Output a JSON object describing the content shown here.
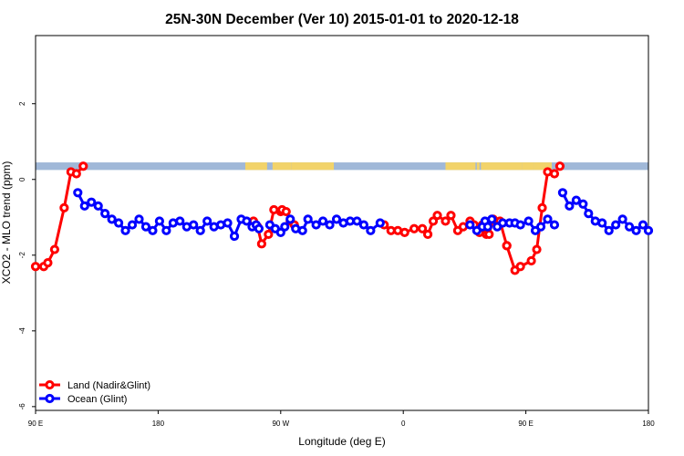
{
  "chart_data": {
    "type": "line",
    "title": "25N-30N December (Ver 10)   2015-01-01 to 2020-12-18",
    "xlabel": "Longitude (deg E)",
    "ylabel": "XCO2 - MLO trend (ppm)",
    "x_ticks": [
      {
        "value": 90,
        "label": "90 E"
      },
      {
        "value": 180,
        "label": "180"
      },
      {
        "value": 270,
        "label": "90 W"
      },
      {
        "value": 360,
        "label": "0"
      },
      {
        "value": 450,
        "label": "90 E"
      },
      {
        "value": 540,
        "label": "180"
      }
    ],
    "y_ticks": [
      {
        "value": -6,
        "label": "-6"
      },
      {
        "value": -4,
        "label": "-4"
      },
      {
        "value": -2,
        "label": "-2"
      },
      {
        "value": 0,
        "label": "0"
      },
      {
        "value": 2,
        "label": "2"
      }
    ],
    "xlim": [
      90,
      540
    ],
    "ylim": [
      -6.1,
      3.8
    ],
    "grid": false,
    "legend_position": "bottom-left",
    "land_ocean_strip": {
      "y_range": [
        0.25,
        0.45
      ],
      "ocean_color": "#a0b8d8",
      "land_color": "#f2d36a",
      "land_segments": [
        [
          244,
          260
        ],
        [
          264,
          278
        ],
        [
          279,
          281
        ],
        [
          278,
          309
        ],
        [
          391,
          413
        ],
        [
          414,
          416
        ],
        [
          417,
          423
        ],
        [
          422,
          447
        ],
        [
          447,
          456
        ],
        [
          456,
          469
        ]
      ]
    },
    "series": [
      {
        "name": "Land (Nadir&Glint)",
        "color": "#ff0000",
        "segments": [
          {
            "x": [
              90,
              96,
              99,
              104,
              111,
              116,
              120,
              125
            ],
            "y": [
              -2.3,
              -2.3,
              -2.2,
              -1.85,
              -0.75,
              0.2,
              0.15,
              0.35
            ]
          },
          {
            "x": [
              250,
              253,
              256,
              261,
              265
            ],
            "y": [
              -1.1,
              -1.25,
              -1.7,
              -1.45,
              -0.8
            ]
          },
          {
            "x": [
              270,
              271
            ],
            "y": [
              -0.85,
              -0.8
            ]
          },
          {
            "x": [
              274,
              277,
              280
            ],
            "y": [
              -0.85,
              -1.1,
              -1.2
            ]
          },
          {
            "x": [
              346,
              351,
              356,
              361,
              368,
              374,
              378,
              382,
              385,
              391,
              395,
              400,
              404,
              409
            ],
            "y": [
              -1.2,
              -1.35,
              -1.35,
              -1.4,
              -1.3,
              -1.3,
              -1.45,
              -1.1,
              -0.95,
              -1.1,
              -0.95,
              -1.35,
              -1.25,
              -1.1
            ]
          },
          {
            "x": [
              412,
              416,
              418,
              421,
              423,
              426,
              431,
              436
            ],
            "y": [
              -1.2,
              -1.4,
              -1.2,
              -1.45,
              -1.45,
              -1.05,
              -1.1,
              -1.75
            ]
          },
          {
            "x": [
              436,
              442,
              446,
              454,
              458,
              462,
              466,
              471
            ],
            "y": [
              -1.75,
              -2.4,
              -2.3,
              -2.15,
              -1.85,
              -0.75,
              0.2,
              0.15
            ]
          },
          {
            "x": [
              475
            ],
            "y": [
              0.35
            ]
          }
        ]
      },
      {
        "name": "Ocean (Glint)",
        "color": "#0000ff",
        "segments": [
          {
            "x": [
              121,
              126,
              131,
              136,
              141,
              146,
              151,
              156,
              161,
              166,
              171,
              176,
              181,
              186,
              191,
              196,
              201,
              206,
              211,
              216,
              221,
              226,
              231,
              236,
              241,
              245,
              249,
              252,
              254
            ],
            "y": [
              -0.35,
              -0.7,
              -0.6,
              -0.7,
              -0.9,
              -1.05,
              -1.15,
              -1.35,
              -1.2,
              -1.05,
              -1.25,
              -1.35,
              -1.1,
              -1.35,
              -1.15,
              -1.1,
              -1.25,
              -1.2,
              -1.35,
              -1.1,
              -1.25,
              -1.2,
              -1.15,
              -1.5,
              -1.05,
              -1.1,
              -1.25,
              -1.2,
              -1.3
            ]
          },
          {
            "x": [
              262,
              266,
              270
            ],
            "y": [
              -1.2,
              -1.3,
              -1.4
            ]
          },
          {
            "x": [
              273,
              277
            ],
            "y": [
              -1.25,
              -1.05
            ]
          },
          {
            "x": [
              281,
              286,
              290,
              296,
              301,
              306,
              311,
              316,
              321,
              326,
              331,
              336,
              343
            ],
            "y": [
              -1.3,
              -1.35,
              -1.05,
              -1.2,
              -1.1,
              -1.2,
              -1.05,
              -1.15,
              -1.1,
              -1.1,
              -1.2,
              -1.35,
              -1.15
            ]
          },
          {
            "x": [
              409,
              414
            ],
            "y": [
              -1.2,
              -1.35
            ]
          },
          {
            "x": [
              418,
              420,
              422,
              425,
              429,
              433,
              438,
              442,
              446,
              452,
              457,
              461,
              466,
              471
            ],
            "y": [
              -1.25,
              -1.1,
              -1.25,
              -1.05,
              -1.25,
              -1.15,
              -1.15,
              -1.15,
              -1.2,
              -1.1,
              -1.35,
              -1.25,
              -1.05,
              -1.2
            ]
          },
          {
            "x": [
              477,
              482,
              487,
              492,
              496,
              501,
              506,
              511,
              516,
              521,
              526,
              531,
              536,
              540
            ],
            "y": [
              -0.35,
              -0.7,
              -0.55,
              -0.65,
              -0.9,
              -1.1,
              -1.15,
              -1.35,
              -1.2,
              -1.05,
              -1.25,
              -1.35,
              -1.2,
              -1.35
            ]
          }
        ]
      }
    ]
  }
}
